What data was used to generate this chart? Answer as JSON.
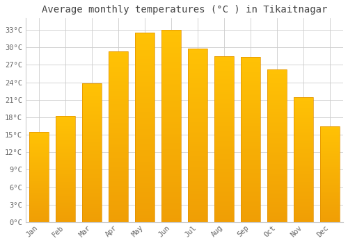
{
  "title": "Average monthly temperatures (°C ) in Tikaitnagar",
  "months": [
    "Jan",
    "Feb",
    "Mar",
    "Apr",
    "May",
    "Jun",
    "Jul",
    "Aug",
    "Sep",
    "Oct",
    "Nov",
    "Dec"
  ],
  "temperatures": [
    15.5,
    18.2,
    23.8,
    29.3,
    32.5,
    33.0,
    29.8,
    28.5,
    28.3,
    26.2,
    21.5,
    16.5
  ],
  "bar_color_top": "#FFC000",
  "bar_color_bottom": "#F5A000",
  "bar_edge_color": "#E09000",
  "background_color": "#FFFFFF",
  "grid_color": "#CCCCCC",
  "yticks": [
    0,
    3,
    6,
    9,
    12,
    15,
    18,
    21,
    24,
    27,
    30,
    33
  ],
  "ylim": [
    0,
    35
  ],
  "title_fontsize": 10,
  "tick_fontsize": 7.5,
  "title_color": "#444444",
  "tick_color": "#666666",
  "font_family": "monospace",
  "bar_width": 0.75
}
